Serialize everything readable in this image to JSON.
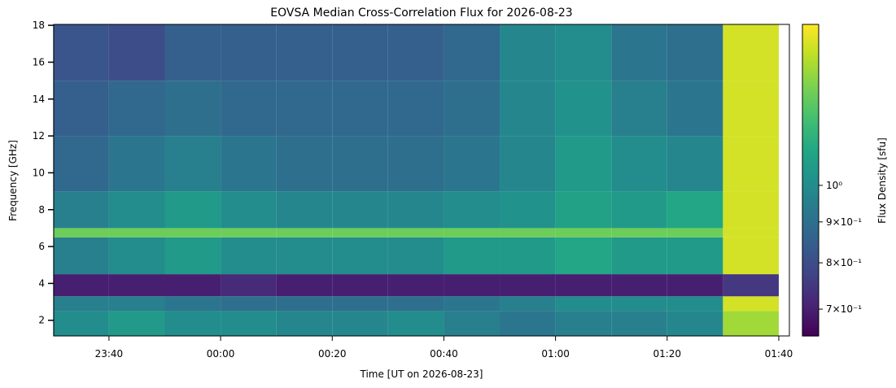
{
  "chart_data": {
    "type": "heatmap",
    "title": "EOVSA Median Cross-Correlation Flux for 2026-08-23",
    "xlabel": "Time [UT on 2026-08-23]",
    "ylabel": "Frequency [GHz]",
    "colorbar_label": "Flux Density [sfu]",
    "colormap": "viridis",
    "log_color": true,
    "x_edges": [
      -30,
      -20,
      -10,
      0,
      10,
      20,
      30,
      40,
      50,
      60,
      70,
      80,
      90,
      100
    ],
    "y_edges": [
      1.15,
      2.5,
      3.3,
      4.5,
      6.5,
      7,
      9,
      12,
      15,
      18.05
    ],
    "z": [
      [
        1.0,
        1.05,
        1.0,
        1.0,
        0.98,
        0.98,
        1.0,
        0.95,
        0.92,
        0.95,
        0.95,
        0.98,
        1.4
      ],
      [
        0.95,
        0.95,
        0.92,
        0.9,
        0.9,
        0.9,
        0.9,
        0.92,
        0.95,
        1.0,
        1.0,
        1.0,
        1.5
      ],
      [
        0.7,
        0.7,
        0.7,
        0.72,
        0.7,
        0.7,
        0.7,
        0.7,
        0.7,
        0.7,
        0.7,
        0.7,
        0.75
      ],
      [
        0.95,
        1.0,
        1.05,
        1.0,
        1.0,
        1.0,
        1.0,
        1.05,
        1.05,
        1.1,
        1.05,
        1.05,
        1.5
      ],
      [
        1.3,
        1.3,
        1.3,
        1.3,
        1.3,
        1.3,
        1.3,
        1.3,
        1.3,
        1.3,
        1.3,
        1.3,
        1.5
      ],
      [
        0.95,
        1.0,
        1.05,
        1.0,
        0.98,
        0.98,
        0.98,
        1.0,
        1.02,
        1.08,
        1.05,
        1.1,
        1.5
      ],
      [
        0.88,
        0.92,
        0.95,
        0.92,
        0.9,
        0.9,
        0.9,
        0.92,
        0.98,
        1.05,
        1.0,
        0.98,
        1.5
      ],
      [
        0.85,
        0.88,
        0.9,
        0.88,
        0.88,
        0.88,
        0.88,
        0.9,
        0.98,
        1.02,
        0.95,
        0.92,
        1.5
      ],
      [
        0.82,
        0.8,
        0.85,
        0.85,
        0.85,
        0.85,
        0.85,
        0.88,
        0.98,
        1.0,
        0.92,
        0.9,
        1.5
      ]
    ],
    "xlim": [
      -29.9,
      101.9
    ],
    "xticks": [
      {
        "value": -20,
        "label": "23:40"
      },
      {
        "value": 0,
        "label": "00:00"
      },
      {
        "value": 20,
        "label": "00:20"
      },
      {
        "value": 40,
        "label": "00:40"
      },
      {
        "value": 60,
        "label": "01:00"
      },
      {
        "value": 80,
        "label": "01:20"
      },
      {
        "value": 100,
        "label": "01:40"
      }
    ],
    "ylim": [
      1.15,
      18.05
    ],
    "yticks": [
      2,
      4,
      6,
      8,
      10,
      12,
      14,
      16,
      18
    ],
    "clim": [
      0.648,
      1.59
    ],
    "cticks": [
      {
        "value": 0.7,
        "label": "7×10⁻¹"
      },
      {
        "value": 0.8,
        "label": "8×10⁻¹"
      },
      {
        "value": 0.9,
        "label": "9×10⁻¹"
      },
      {
        "value": 1,
        "label": "10⁰"
      }
    ]
  }
}
